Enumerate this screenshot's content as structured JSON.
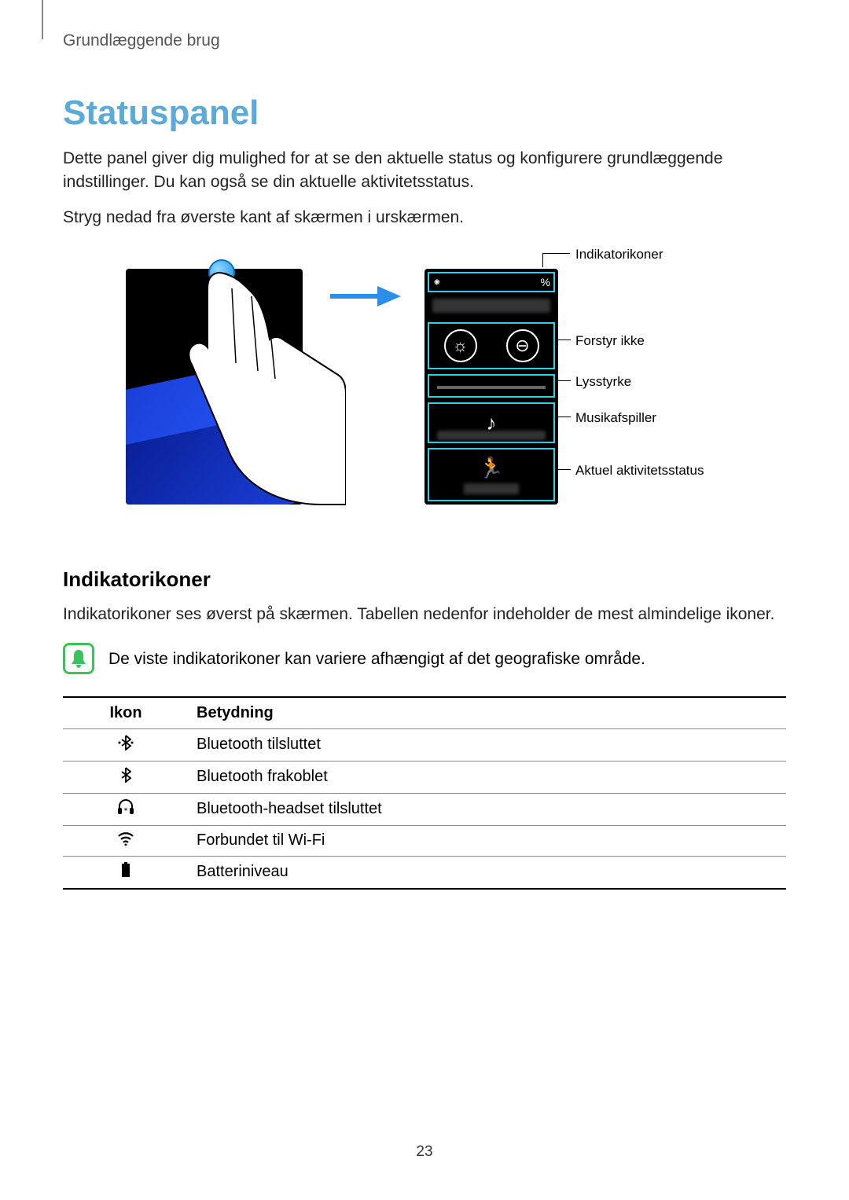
{
  "breadcrumb": "Grundlæggende brug",
  "title": "Statuspanel",
  "title_color": "#5da9d8",
  "paragraphs": {
    "p1": "Dette panel giver dig mulighed for at se den aktuelle status og konfigurere grundlæggende indstillinger. Du kan også se din aktuelle aktivitetsstatus.",
    "p2": "Stryg nedad fra øverste kant af skærmen i urskærmen."
  },
  "callouts": {
    "indicator": "Indikatorikoner",
    "dnd": "Forstyr ikke",
    "brightness": "Lysstyrke",
    "music": "Musikafspiller",
    "activity": "Aktuel aktivitetsstatus"
  },
  "figure": {
    "highlight_color": "#2fd0df",
    "statusbar_left_glyph": "⁕",
    "statusbar_right_glyph": "%",
    "brightness_glyph": "☼",
    "dnd_glyph": "⊖",
    "music_glyph": "♪",
    "runner_glyph": "🏃"
  },
  "section2": {
    "heading": "Indikatorikoner",
    "body": "Indikatorikoner ses øverst på skærmen. Tabellen nedenfor indeholder de mest almindelige ikoner.",
    "note": "De viste indikatorikoner kan variere afhængigt af det geografiske område.",
    "note_icon_color": "#3fc060"
  },
  "table": {
    "headers": {
      "icon": "Ikon",
      "meaning": "Betydning"
    },
    "rows": [
      {
        "icon_name": "bluetooth-connected-icon",
        "glyph": "⟪∗⟫",
        "meaning": "Bluetooth tilsluttet"
      },
      {
        "icon_name": "bluetooth-disabled-icon",
        "glyph": "∗",
        "meaning": "Bluetooth frakoblet"
      },
      {
        "icon_name": "bluetooth-headset-icon",
        "glyph": "🎧",
        "meaning": "Bluetooth-headset tilsluttet"
      },
      {
        "icon_name": "wifi-icon",
        "glyph": "📶",
        "meaning": "Forbundet til Wi-Fi"
      },
      {
        "icon_name": "battery-icon",
        "glyph": "▮",
        "meaning": "Batteriniveau"
      }
    ]
  },
  "page_number": "23"
}
